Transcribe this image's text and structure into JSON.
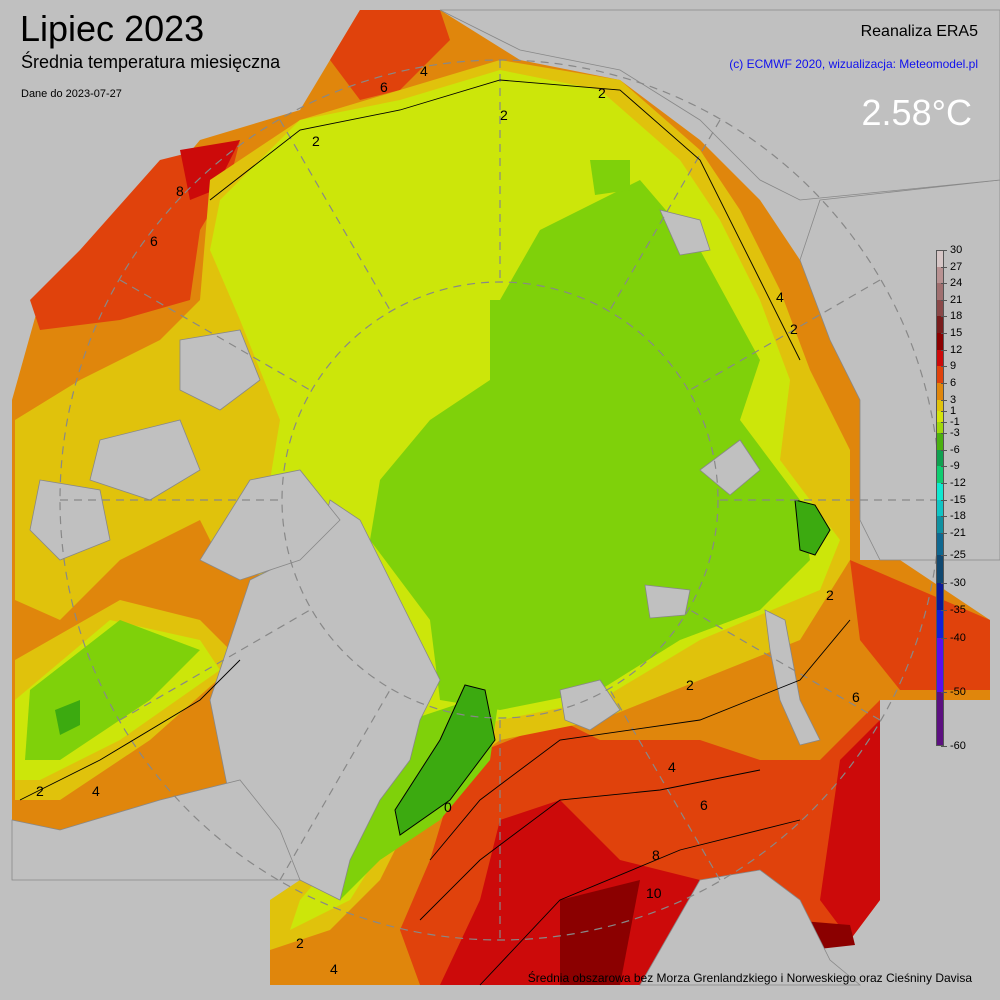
{
  "header": {
    "title": "Lipiec 2023",
    "subtitle": "Średnia temperatura miesięczna",
    "data_date": "Dane do 2023-07-27",
    "source": "Reanaliza ERA5",
    "credit": "(c) ECMWF 2020, wizualizacja: Meteomodel.pl",
    "area_average": "2.58°C"
  },
  "footnote": "Średnia obszarowa bez Morza Grenlandzkiego i Norweskiego oraz Cieśniny Davisa",
  "legend": {
    "ticks": [
      "30",
      "27",
      "24",
      "21",
      "18",
      "15",
      "12",
      "9",
      "6",
      "3",
      "1",
      "-1",
      "-3",
      "-6",
      "-9",
      "-12",
      "-15",
      "-18",
      "-21",
      "-25",
      "-30",
      "-35",
      "-40",
      "-50",
      "-60"
    ],
    "colors": [
      "#d6c6c6",
      "#b89292",
      "#a07070",
      "#8a4848",
      "#781c1c",
      "#8b0000",
      "#cc0a0a",
      "#e0420c",
      "#e0860c",
      "#e0c20c",
      "#d4e40a",
      "#a0d80a",
      "#4cb010",
      "#10a050",
      "#10cc70",
      "#10e8d0",
      "#10c4c4",
      "#1090a0",
      "#106890",
      "#104870",
      "#0c1a98",
      "#1420d8",
      "#5a10ee",
      "#5c1080"
    ]
  },
  "map": {
    "colors": {
      "land": "#c0c0c0",
      "lt1": "#7fd10a",
      "lt0": "#3caa10",
      "1to2": "#cce60a",
      "2to3": "#e0c20c",
      "3to6": "#e0860c",
      "6to9": "#e0420c",
      "9to12": "#cc0a0a",
      "12to15": "#8b0000"
    },
    "contour_labels": [
      "2",
      "2",
      "2",
      "2",
      "4",
      "4",
      "6",
      "6",
      "8",
      "10",
      "0",
      "2",
      "4",
      "6",
      "8",
      "2",
      "4",
      "2",
      "4",
      "6",
      "2"
    ]
  }
}
